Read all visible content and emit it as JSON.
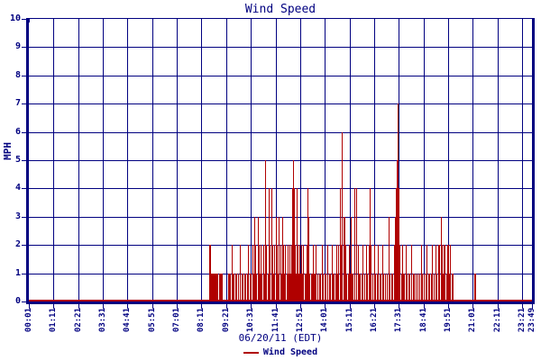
{
  "title": "Wind Speed",
  "colors": {
    "axis_and_grid": "#000080",
    "text": "#000080",
    "series": "#b00000",
    "background": "#ffffff"
  },
  "y_axis": {
    "label": "MPH",
    "tick_labels": [
      "0",
      "1",
      "2",
      "3",
      "4",
      "5",
      "6",
      "7",
      "8",
      "9",
      "10"
    ],
    "min": 0,
    "max": 10
  },
  "x_axis": {
    "date_label": "06/20/11 (EDT)",
    "tick_labels": [
      "00:01",
      "01:11",
      "02:21",
      "03:31",
      "04:41",
      "05:51",
      "07:01",
      "08:11",
      "09:21",
      "10:31",
      "11:41",
      "12:51",
      "14:01",
      "15:11",
      "16:21",
      "17:31",
      "18:41",
      "19:51",
      "21:01",
      "22:11",
      "23:21"
    ],
    "end_label": "23:49",
    "start_time": "00:01",
    "end_time": "23:49",
    "tick_interval_minutes": 70
  },
  "legend": {
    "series_label": "Wind Speed",
    "marker_color": "#b00000"
  },
  "chart_data": {
    "type": "bar",
    "title": "Wind Speed",
    "xlabel": "06/20/11 (EDT)",
    "ylabel": "MPH",
    "ylim": [
      0,
      10
    ],
    "x_range": [
      "00:01",
      "23:49"
    ],
    "grid": true,
    "legend_position": "bottom-center",
    "zero_baseline": {
      "from": "00:01",
      "to": "23:49",
      "value": 0
    },
    "series": [
      {
        "name": "Wind Speed",
        "unit": "MPH",
        "points": [
          [
            "08:32",
            1
          ],
          [
            "08:34",
            2
          ],
          [
            "08:36",
            2
          ],
          [
            "08:38",
            1
          ],
          [
            "08:40",
            1
          ],
          [
            "08:42",
            1
          ],
          [
            "08:45",
            1
          ],
          [
            "08:48",
            1
          ],
          [
            "08:51",
            1
          ],
          [
            "08:54",
            1
          ],
          [
            "08:57",
            1
          ],
          [
            "09:00",
            1
          ],
          [
            "09:03",
            1
          ],
          [
            "09:06",
            1
          ],
          [
            "09:09",
            1
          ],
          [
            "09:26",
            1
          ],
          [
            "09:29",
            1
          ],
          [
            "09:32",
            1
          ],
          [
            "09:36",
            2
          ],
          [
            "09:39",
            1
          ],
          [
            "09:42",
            1
          ],
          [
            "09:46",
            1
          ],
          [
            "09:50",
            1
          ],
          [
            "09:54",
            1
          ],
          [
            "10:00",
            2
          ],
          [
            "10:04",
            1
          ],
          [
            "10:08",
            1
          ],
          [
            "10:12",
            1
          ],
          [
            "10:16",
            1
          ],
          [
            "10:20",
            1
          ],
          [
            "10:23",
            2
          ],
          [
            "10:27",
            1
          ],
          [
            "10:31",
            1
          ],
          [
            "10:35",
            2
          ],
          [
            "10:38",
            1
          ],
          [
            "10:41",
            3
          ],
          [
            "10:44",
            2
          ],
          [
            "10:47",
            1
          ],
          [
            "10:50",
            3
          ],
          [
            "10:53",
            2
          ],
          [
            "10:56",
            1
          ],
          [
            "10:59",
            2
          ],
          [
            "11:02",
            1
          ],
          [
            "11:06",
            2
          ],
          [
            "11:09",
            1
          ],
          [
            "11:12",
            5
          ],
          [
            "11:15",
            2
          ],
          [
            "11:18",
            1
          ],
          [
            "11:22",
            4
          ],
          [
            "11:25",
            2
          ],
          [
            "11:29",
            4
          ],
          [
            "11:32",
            2
          ],
          [
            "11:35",
            1
          ],
          [
            "11:38",
            2
          ],
          [
            "11:42",
            3
          ],
          [
            "11:45",
            2
          ],
          [
            "11:48",
            1
          ],
          [
            "11:51",
            3
          ],
          [
            "11:54",
            2
          ],
          [
            "11:57",
            1
          ],
          [
            "12:00",
            3
          ],
          [
            "12:03",
            2
          ],
          [
            "12:06",
            1
          ],
          [
            "12:09",
            2
          ],
          [
            "12:12",
            1
          ],
          [
            "12:15",
            2
          ],
          [
            "12:18",
            1
          ],
          [
            "12:21",
            2
          ],
          [
            "12:24",
            1
          ],
          [
            "12:26",
            2
          ],
          [
            "12:28",
            4
          ],
          [
            "12:31",
            5
          ],
          [
            "12:33",
            4
          ],
          [
            "12:36",
            2
          ],
          [
            "12:38",
            1
          ],
          [
            "12:40",
            4
          ],
          [
            "12:43",
            2
          ],
          [
            "12:46",
            1
          ],
          [
            "12:48",
            2
          ],
          [
            "12:51",
            1
          ],
          [
            "12:54",
            2
          ],
          [
            "12:57",
            1
          ],
          [
            "13:00",
            2
          ],
          [
            "13:03",
            1
          ],
          [
            "13:06",
            1
          ],
          [
            "13:09",
            2
          ],
          [
            "13:12",
            4
          ],
          [
            "13:15",
            3
          ],
          [
            "13:18",
            1
          ],
          [
            "13:21",
            1
          ],
          [
            "13:24",
            1
          ],
          [
            "13:27",
            2
          ],
          [
            "13:30",
            1
          ],
          [
            "13:33",
            1
          ],
          [
            "13:36",
            2
          ],
          [
            "13:40",
            1
          ],
          [
            "13:44",
            1
          ],
          [
            "13:48",
            1
          ],
          [
            "13:52",
            2
          ],
          [
            "13:56",
            1
          ],
          [
            "14:00",
            1
          ],
          [
            "14:04",
            1
          ],
          [
            "14:08",
            2
          ],
          [
            "14:12",
            1
          ],
          [
            "14:16",
            1
          ],
          [
            "14:20",
            2
          ],
          [
            "14:24",
            1
          ],
          [
            "14:27",
            1
          ],
          [
            "14:30",
            1
          ],
          [
            "14:34",
            2
          ],
          [
            "14:37",
            1
          ],
          [
            "14:40",
            2
          ],
          [
            "14:43",
            4
          ],
          [
            "14:46",
            2
          ],
          [
            "14:50",
            6
          ],
          [
            "14:53",
            3
          ],
          [
            "14:57",
            3
          ],
          [
            "15:00",
            2
          ],
          [
            "15:03",
            1
          ],
          [
            "15:06",
            1
          ],
          [
            "15:09",
            2
          ],
          [
            "15:12",
            1
          ],
          [
            "15:15",
            3
          ],
          [
            "15:18",
            1
          ],
          [
            "15:21",
            1
          ],
          [
            "15:26",
            4
          ],
          [
            "15:29",
            1
          ],
          [
            "15:31",
            4
          ],
          [
            "15:34",
            2
          ],
          [
            "15:37",
            1
          ],
          [
            "15:41",
            1
          ],
          [
            "15:45",
            1
          ],
          [
            "15:49",
            2
          ],
          [
            "15:53",
            1
          ],
          [
            "15:57",
            2
          ],
          [
            "16:01",
            1
          ],
          [
            "16:05",
            2
          ],
          [
            "16:09",
            4
          ],
          [
            "16:12",
            2
          ],
          [
            "16:16",
            1
          ],
          [
            "16:20",
            2
          ],
          [
            "16:24",
            1
          ],
          [
            "16:28",
            1
          ],
          [
            "16:32",
            2
          ],
          [
            "16:36",
            1
          ],
          [
            "16:40",
            1
          ],
          [
            "16:44",
            2
          ],
          [
            "16:48",
            1
          ],
          [
            "16:52",
            1
          ],
          [
            "16:56",
            1
          ],
          [
            "17:01",
            3
          ],
          [
            "17:05",
            1
          ],
          [
            "17:09",
            1
          ],
          [
            "17:13",
            1
          ],
          [
            "17:17",
            2
          ],
          [
            "17:20",
            3
          ],
          [
            "17:23",
            4
          ],
          [
            "17:25",
            5
          ],
          [
            "17:28",
            7
          ],
          [
            "17:31",
            4
          ],
          [
            "17:34",
            2
          ],
          [
            "17:37",
            1
          ],
          [
            "17:40",
            2
          ],
          [
            "17:43",
            1
          ],
          [
            "17:46",
            1
          ],
          [
            "17:50",
            2
          ],
          [
            "17:54",
            1
          ],
          [
            "17:58",
            1
          ],
          [
            "18:02",
            1
          ],
          [
            "18:06",
            2
          ],
          [
            "18:10",
            1
          ],
          [
            "18:14",
            1
          ],
          [
            "18:18",
            1
          ],
          [
            "18:23",
            1
          ],
          [
            "18:28",
            1
          ],
          [
            "18:33",
            2
          ],
          [
            "18:38",
            1
          ],
          [
            "18:42",
            1
          ],
          [
            "18:46",
            1
          ],
          [
            "18:50",
            2
          ],
          [
            "18:54",
            1
          ],
          [
            "18:58",
            1
          ],
          [
            "19:02",
            1
          ],
          [
            "19:06",
            2
          ],
          [
            "19:10",
            1
          ],
          [
            "19:14",
            2
          ],
          [
            "19:18",
            1
          ],
          [
            "19:22",
            2
          ],
          [
            "19:26",
            2
          ],
          [
            "19:30",
            3
          ],
          [
            "19:33",
            2
          ],
          [
            "19:36",
            1
          ],
          [
            "19:39",
            2
          ],
          [
            "19:42",
            2
          ],
          [
            "19:45",
            1
          ],
          [
            "19:48",
            2
          ],
          [
            "19:51",
            2
          ],
          [
            "19:54",
            1
          ],
          [
            "19:57",
            2
          ],
          [
            "20:00",
            1
          ],
          [
            "20:03",
            1
          ],
          [
            "21:06",
            1
          ],
          [
            "21:09",
            1
          ]
        ]
      }
    ]
  }
}
